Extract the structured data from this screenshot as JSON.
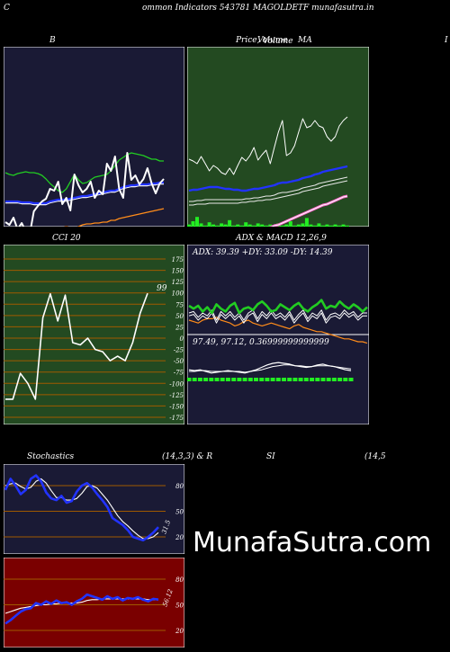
{
  "header": {
    "title": "ommon  Indicators 543781 MAGOLDETF munafasutra.in",
    "left_letter": "C"
  },
  "watermark": "MunafaSutra.com",
  "colors": {
    "navy_panel": "#1a1a35",
    "green_panel": "#234a21",
    "red_panel": "#7a0000",
    "blue_line": "#2233ff",
    "green_line": "#22cc22",
    "orange_line": "#ff8c1a",
    "ma_white": "#e8e8e8",
    "grid_orange": "#a05a00",
    "text": "#ffffff"
  },
  "panels": {
    "bollinger": {
      "title": "B"
    },
    "price": {
      "title_left": "Price,",
      "title_overlap": "Volume",
      "title_right": "MA",
      "title_right_extra": "I"
    },
    "cci": {
      "title": "CCI 20",
      "last_value_label": "99",
      "ticks": [
        "175",
        "150",
        "125",
        "100",
        "75",
        "50",
        "25",
        "0",
        "-25",
        "-50",
        "-75",
        "-100",
        "-125",
        "-150",
        "-175"
      ]
    },
    "adx": {
      "title": "ADX  & MACD 12,26,9",
      "readout": "ADX: 39.39  +DY: 33.09 -DY: 14.39",
      "macd_readout": "97.49,  97.12,  0.36999999999999"
    },
    "stochastics": {
      "title_left": "Stochastics",
      "title_mid": "(14,3,3) & R",
      "title_right": "SI",
      "title_far_right": "(14,5",
      "ticks": [
        "80",
        "50",
        "20"
      ],
      "last_value_label": "31.5"
    },
    "rsi": {
      "ticks": [
        "80",
        "50",
        "20"
      ],
      "last_value_label": "56.12"
    }
  },
  "chart_data": [
    {
      "type": "line",
      "name": "bollinger-bands",
      "x": [
        1,
        2,
        3,
        4,
        5,
        6,
        7,
        8,
        9,
        10,
        11,
        12,
        13,
        14,
        15,
        16,
        17,
        18,
        19,
        20,
        21,
        22,
        23,
        24,
        25,
        26,
        27,
        28,
        29,
        30,
        31,
        32,
        33,
        34,
        35,
        36,
        37,
        38,
        39,
        40
      ],
      "series": [
        {
          "role": "close",
          "values": [
            195,
            198,
            190,
            203,
            196,
            205,
            208,
            183,
            177,
            172,
            169,
            158,
            160,
            150,
            175,
            168,
            182,
            142,
            154,
            162,
            158,
            150,
            168,
            160,
            164,
            130,
            138,
            122,
            158,
            168,
            118,
            148,
            143,
            153,
            147,
            135,
            152,
            163,
            152,
            147
          ]
        },
        {
          "role": "upper",
          "values": [
            140,
            142,
            143,
            141,
            140,
            139,
            140,
            140,
            141,
            143,
            147,
            152,
            156,
            160,
            162,
            158,
            150,
            142,
            148,
            152,
            151,
            148,
            145,
            144,
            143,
            142,
            138,
            132,
            126,
            123,
            120,
            118,
            119,
            120,
            121,
            123,
            125,
            125,
            127,
            127
          ]
        },
        {
          "role": "middle",
          "values": [
            172,
            172,
            172,
            172,
            173,
            173,
            173,
            174,
            174,
            174,
            174,
            172,
            171,
            170,
            170,
            170,
            169,
            168,
            167,
            166,
            166,
            165,
            164,
            163,
            162,
            161,
            160,
            160,
            158,
            156,
            155,
            154,
            154,
            153,
            153,
            153,
            152,
            152,
            151,
            151
          ]
        },
        {
          "role": "lower",
          "values": [
            222,
            221,
            220,
            220,
            220,
            219,
            217,
            215,
            212,
            209,
            206,
            205,
            205,
            203,
            201,
            200,
            201,
            203,
            200,
            198,
            197,
            197,
            196,
            196,
            195,
            195,
            193,
            193,
            191,
            190,
            189,
            188,
            187,
            186,
            185,
            184,
            183,
            182,
            181,
            180
          ]
        }
      ]
    },
    {
      "type": "line",
      "name": "price-volume-ma",
      "x": [
        1,
        2,
        3,
        4,
        5,
        6,
        7,
        8,
        9,
        10,
        11,
        12,
        13,
        14,
        15,
        16,
        17,
        18,
        19,
        20,
        21,
        22,
        23,
        24,
        25,
        26,
        27,
        28,
        29,
        30,
        31,
        32,
        33,
        34,
        35,
        36,
        37,
        38,
        39,
        40
      ],
      "series": [
        {
          "role": "close",
          "values": [
            165,
            167,
            170,
            162,
            170,
            178,
            172,
            175,
            180,
            182,
            175,
            182,
            172,
            163,
            167,
            161,
            152,
            166,
            160,
            155,
            170,
            152,
            135,
            122,
            161,
            158,
            150,
            135,
            120,
            130,
            128,
            122,
            128,
            130,
            140,
            145,
            140,
            128,
            122,
            118
          ]
        },
        {
          "role": "ma-short",
          "values": [
            160,
            159,
            159,
            158,
            157,
            156,
            156,
            156,
            157,
            158,
            158,
            159,
            159,
            160,
            160,
            159,
            158,
            158,
            157,
            156,
            155,
            154,
            152,
            151,
            151,
            150,
            149,
            148,
            146,
            145,
            144,
            142,
            141,
            139,
            138,
            137,
            136,
            135,
            134,
            133
          ]
        },
        {
          "role": "ma-white-1",
          "values": [
            172,
            172,
            171,
            171,
            170,
            170,
            170,
            170,
            170,
            170,
            170,
            170,
            170,
            170,
            169,
            169,
            168,
            168,
            167,
            166,
            166,
            165,
            163,
            162,
            162,
            161,
            160,
            159,
            157,
            156,
            155,
            154,
            152,
            151,
            150,
            149,
            148,
            147,
            146,
            145
          ]
        },
        {
          "role": "ma-white-2",
          "values": [
            176,
            176,
            175,
            175,
            175,
            174,
            174,
            174,
            174,
            174,
            174,
            174,
            174,
            173,
            173,
            172,
            172,
            171,
            171,
            170,
            170,
            169,
            168,
            167,
            166,
            165,
            164,
            163,
            161,
            160,
            159,
            158,
            157,
            155,
            154,
            153,
            152,
            151,
            150,
            149
          ]
        },
        {
          "role": "ma-long",
          "values": [
            248,
            245,
            242,
            239,
            236,
            233,
            231,
            228,
            226,
            224,
            222,
            219,
            217,
            215,
            213,
            211,
            209,
            207,
            205,
            203,
            201,
            199,
            198,
            196,
            194,
            192,
            190,
            188,
            186,
            184,
            182,
            180,
            178,
            176,
            175,
            173,
            171,
            169,
            167,
            166
          ]
        },
        {
          "role": "volume",
          "values": [
            2,
            5,
            9,
            3,
            1,
            4,
            2,
            1,
            3,
            2,
            6,
            1,
            2,
            1,
            4,
            2,
            1,
            3,
            2,
            1,
            2,
            1,
            3,
            1,
            2,
            5,
            1,
            2,
            3,
            8,
            2,
            1,
            3,
            1,
            2,
            1,
            2,
            1,
            2,
            1
          ]
        }
      ]
    },
    {
      "type": "line",
      "name": "cci-20",
      "ylim": [
        -175,
        175
      ],
      "x": [
        1,
        2,
        3,
        4,
        5,
        6,
        7,
        8,
        9,
        10,
        11,
        12,
        13,
        14,
        15,
        16,
        17,
        18,
        19,
        20
      ],
      "series": [
        {
          "values": [
            -135,
            -135,
            -78,
            -100,
            -135,
            45,
            98,
            38,
            95,
            -10,
            -15,
            0,
            -25,
            -30,
            -50,
            -40,
            -50,
            -10,
            55,
            99
          ]
        }
      ]
    },
    {
      "type": "line",
      "name": "adx-macd",
      "series": [
        {
          "role": "adx",
          "values": [
            40,
            38,
            40,
            36,
            39,
            35,
            41,
            38,
            36,
            40,
            42,
            35,
            38,
            39,
            37,
            41,
            43,
            40,
            36,
            37,
            41,
            39,
            37,
            40,
            42,
            38,
            36,
            39,
            41,
            44,
            38,
            40,
            39,
            43,
            40,
            38,
            41,
            39,
            36,
            39
          ]
        },
        {
          "role": "plus-di",
          "values": [
            33,
            34,
            30,
            33,
            31,
            35,
            28,
            34,
            31,
            34,
            30,
            33,
            28,
            33,
            35,
            29,
            34,
            31,
            35,
            31,
            33,
            30,
            34,
            28,
            32,
            35,
            29,
            33,
            31,
            35,
            28,
            32,
            33,
            31,
            35,
            32,
            34,
            30,
            33,
            33
          ]
        },
        {
          "role": "minus-di",
          "values": [
            30,
            29,
            28,
            30,
            31,
            31,
            32,
            30,
            29,
            28,
            26,
            27,
            29,
            30,
            28,
            27,
            26,
            27,
            28,
            27,
            26,
            25,
            24,
            26,
            27,
            25,
            24,
            23,
            22,
            22,
            21,
            20,
            19,
            18,
            17,
            17,
            16,
            15,
            15,
            14
          ]
        },
        {
          "role": "macd",
          "values": [
            12,
            11,
            12,
            10,
            8,
            9,
            10,
            11,
            10,
            9,
            8,
            10,
            12,
            15,
            18,
            20,
            21,
            20,
            19,
            17,
            16,
            15,
            16,
            18,
            19,
            17,
            16,
            14,
            12,
            11
          ]
        },
        {
          "role": "signal",
          "values": [
            10,
            10,
            11,
            11,
            10,
            10,
            10,
            10,
            10,
            10,
            9,
            10,
            11,
            12,
            14,
            16,
            17,
            18,
            18,
            17,
            17,
            16,
            16,
            17,
            17,
            17,
            16,
            15,
            14,
            13
          ]
        },
        {
          "role": "histogram",
          "values": [
            2,
            1,
            1,
            -1,
            -2,
            -1,
            0,
            1,
            0,
            -1,
            -1,
            0,
            1,
            3,
            4,
            4,
            4,
            2,
            1,
            0,
            -1,
            -1,
            0,
            1,
            2,
            0,
            0,
            -1,
            -2,
            -2
          ]
        }
      ]
    },
    {
      "type": "line",
      "name": "stochastics",
      "ylim": [
        0,
        100
      ],
      "series": [
        {
          "role": "k",
          "values": [
            75,
            88,
            80,
            70,
            75,
            88,
            92,
            85,
            72,
            65,
            63,
            68,
            60,
            62,
            73,
            80,
            83,
            78,
            70,
            63,
            55,
            42,
            38,
            34,
            28,
            20,
            18,
            16,
            20,
            25,
            31.5
          ]
        },
        {
          "role": "d",
          "values": [
            80,
            82,
            83,
            79,
            76,
            78,
            85,
            88,
            83,
            74,
            66,
            66,
            63,
            63,
            65,
            71,
            79,
            80,
            77,
            70,
            63,
            54,
            45,
            38,
            33,
            27,
            22,
            18,
            18,
            20,
            25
          ]
        }
      ]
    },
    {
      "type": "line",
      "name": "rsi",
      "ylim": [
        0,
        100
      ],
      "series": [
        {
          "role": "rsi",
          "values": [
            28,
            32,
            37,
            42,
            45,
            46,
            52,
            50,
            54,
            51,
            55,
            52,
            53,
            50,
            54,
            57,
            62,
            60,
            58,
            56,
            60,
            57,
            59,
            55,
            58,
            57,
            59,
            56,
            54,
            57,
            56.12
          ]
        },
        {
          "role": "rsi-ma",
          "values": [
            40,
            42,
            44,
            46,
            47,
            48,
            49,
            50,
            50,
            51,
            51,
            52,
            52,
            52,
            52,
            53,
            55,
            56,
            56,
            57,
            57,
            57,
            57,
            57,
            57,
            57,
            57,
            57,
            56,
            56,
            56
          ]
        }
      ]
    }
  ]
}
